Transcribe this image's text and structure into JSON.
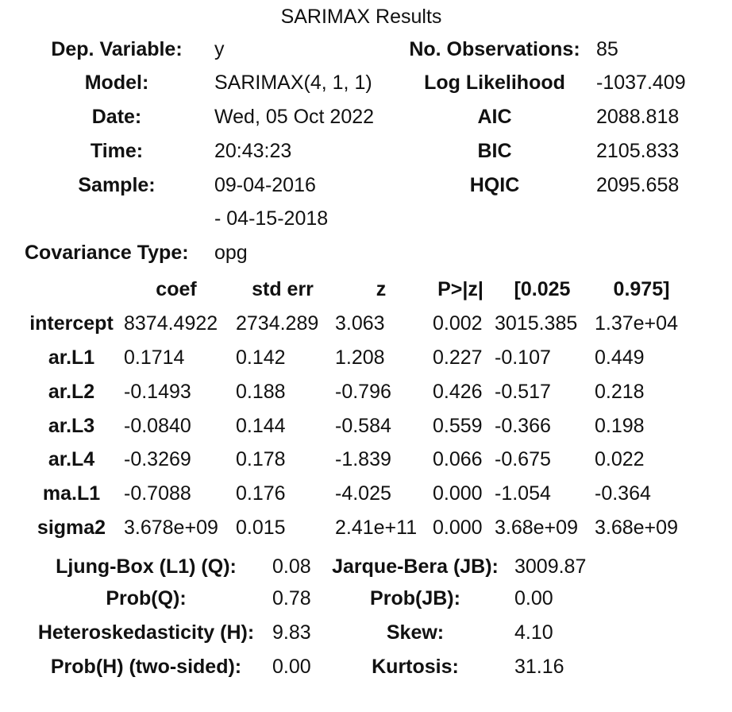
{
  "title": "SARIMAX Results",
  "summary": {
    "dep_variable_label": "Dep. Variable:",
    "dep_variable_value": "y",
    "model_label": "Model:",
    "model_value": "SARIMAX(4, 1, 1)",
    "date_label": "Date:",
    "date_value": "Wed, 05 Oct 2022",
    "time_label": "Time:",
    "time_value": "20:43:23",
    "sample_label": "Sample:",
    "sample_value_start": "09-04-2016",
    "sample_value_end": "- 04-15-2018",
    "covariance_label": "Covariance Type:",
    "covariance_value": "opg",
    "nobs_label": "No. Observations:",
    "nobs_value": "85",
    "loglik_label": "Log Likelihood",
    "loglik_value": "-1037.409",
    "aic_label": "AIC",
    "aic_value": "2088.818",
    "bic_label": "BIC",
    "bic_value": "2105.833",
    "hqic_label": "HQIC",
    "hqic_value": "2095.658"
  },
  "coef_table": {
    "headers": [
      "coef",
      "std err",
      "z",
      "P>|z|",
      "[0.025",
      "0.975]"
    ],
    "rows": [
      {
        "name": "intercept",
        "coef": "8374.4922",
        "std_err": "2734.289",
        "z": "3.063",
        "p": "0.002",
        "lo": "3015.385",
        "hi": "1.37e+04"
      },
      {
        "name": "ar.L1",
        "coef": "0.1714",
        "std_err": "0.142",
        "z": "1.208",
        "p": "0.227",
        "lo": "-0.107",
        "hi": "0.449"
      },
      {
        "name": "ar.L2",
        "coef": "-0.1493",
        "std_err": "0.188",
        "z": "-0.796",
        "p": "0.426",
        "lo": "-0.517",
        "hi": "0.218"
      },
      {
        "name": "ar.L3",
        "coef": "-0.0840",
        "std_err": "0.144",
        "z": "-0.584",
        "p": "0.559",
        "lo": "-0.366",
        "hi": "0.198"
      },
      {
        "name": "ar.L4",
        "coef": "-0.3269",
        "std_err": "0.178",
        "z": "-1.839",
        "p": "0.066",
        "lo": "-0.675",
        "hi": "0.022"
      },
      {
        "name": "ma.L1",
        "coef": "-0.7088",
        "std_err": "0.176",
        "z": "-4.025",
        "p": "0.000",
        "lo": "-1.054",
        "hi": "-0.364"
      },
      {
        "name": "sigma2",
        "coef": "3.678e+09",
        "std_err": "0.015",
        "z": "2.41e+11",
        "p": "0.000",
        "lo": "3.68e+09",
        "hi": "3.68e+09"
      }
    ]
  },
  "diagnostics": {
    "ljung_label": "Ljung-Box (L1) (Q):",
    "ljung_value": "0.08",
    "probq_label": "Prob(Q):",
    "probq_value": "0.78",
    "hetero_label": "Heteroskedasticity (H):",
    "hetero_value": "9.83",
    "probh_label": "Prob(H) (two-sided):",
    "probh_value": "0.00",
    "jb_label": "Jarque-Bera (JB):",
    "jb_value": "3009.87",
    "probjb_label": "Prob(JB):",
    "probjb_value": "0.00",
    "skew_label": "Skew:",
    "skew_value": "4.10",
    "kurtosis_label": "Kurtosis:",
    "kurtosis_value": "31.16"
  }
}
